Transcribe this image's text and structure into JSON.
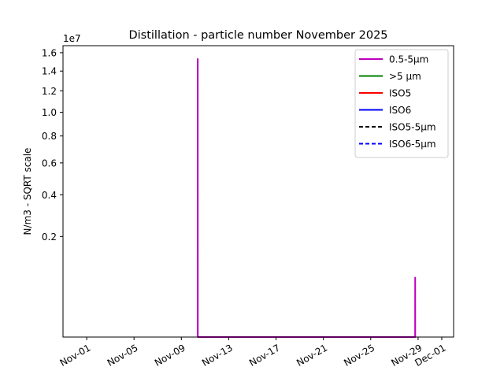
{
  "chart_data": {
    "type": "line",
    "title": "Distillation - particle number November 2025",
    "ylabel": "N/m3 - SQRT scale",
    "xlabel": "",
    "y_scale": "sqrt",
    "y_offset_label": "1e7",
    "ylim": [
      0,
      16800000
    ],
    "y_ticks": [
      {
        "value": 2000000,
        "label": "0.2"
      },
      {
        "value": 4000000,
        "label": "0.4"
      },
      {
        "value": 6000000,
        "label": "0.6"
      },
      {
        "value": 8000000,
        "label": "0.8"
      },
      {
        "value": 10000000,
        "label": "1.0"
      },
      {
        "value": 12000000,
        "label": "1.2"
      },
      {
        "value": 14000000,
        "label": "1.4"
      },
      {
        "value": 16000000,
        "label": "1.6"
      }
    ],
    "xlim": [
      "2025-10-30",
      "2025-12-02"
    ],
    "x_ticks": [
      {
        "value": "2025-11-01",
        "label": "Nov-01"
      },
      {
        "value": "2025-11-05",
        "label": "Nov-05"
      },
      {
        "value": "2025-11-09",
        "label": "Nov-09"
      },
      {
        "value": "2025-11-13",
        "label": "Nov-13"
      },
      {
        "value": "2025-11-17",
        "label": "Nov-17"
      },
      {
        "value": "2025-11-21",
        "label": "Nov-21"
      },
      {
        "value": "2025-11-25",
        "label": "Nov-25"
      },
      {
        "value": "2025-11-29",
        "label": "Nov-29"
      },
      {
        "value": "2025-12-01",
        "label": "Dec-01"
      }
    ],
    "grid": false,
    "legend_position": "top-right",
    "series": [
      {
        "name": "0.5-5µm",
        "color": "#bf00bf",
        "dash": "solid",
        "points": [
          {
            "x": "2025-11-10T09:00",
            "y": 0
          },
          {
            "x": "2025-11-10T09:05",
            "y": 15300000
          },
          {
            "x": "2025-11-10T09:15",
            "y": 15250000
          },
          {
            "x": "2025-11-10T09:20",
            "y": 0
          },
          {
            "x": "2025-11-28T18:00",
            "y": 0
          },
          {
            "x": "2025-11-28T18:05",
            "y": 700000
          },
          {
            "x": "2025-11-28T18:10",
            "y": 0
          }
        ]
      },
      {
        "name": ">5 µm",
        "color": "#008000",
        "dash": "solid",
        "points": []
      },
      {
        "name": "ISO5",
        "color": "#ff0000",
        "dash": "solid",
        "points": []
      },
      {
        "name": "ISO6",
        "color": "#0000ff",
        "dash": "solid",
        "points": []
      },
      {
        "name": "ISO5-5µm",
        "color": "#000000",
        "dash": "dashed",
        "points": []
      },
      {
        "name": "ISO6-5µm",
        "color": "#0000ff",
        "dash": "dashed",
        "points": []
      }
    ]
  }
}
